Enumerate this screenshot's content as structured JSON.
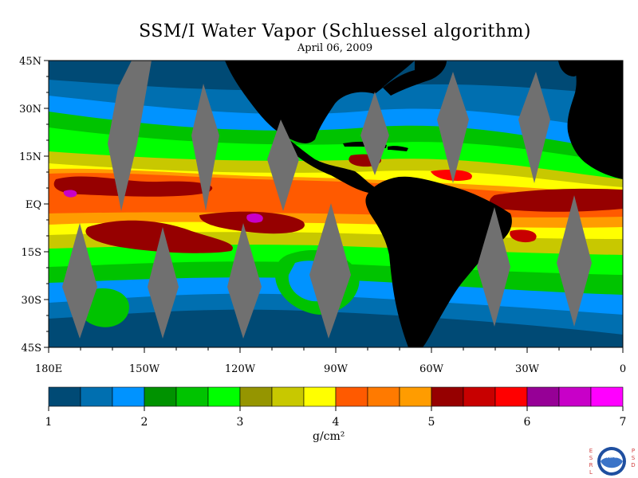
{
  "title": "SSM/I Water Vapor (Schluessel algorithm)",
  "subtitle": "April 06, 2009",
  "map": {
    "lat_labels": [
      "45N",
      "30N",
      "15N",
      "EQ",
      "15S",
      "30S",
      "45S"
    ],
    "lon_labels": [
      "180E",
      "150W",
      "120W",
      "90W",
      "60W",
      "30W",
      "0"
    ],
    "lat_range": [
      -45,
      45
    ],
    "lon_range": [
      -180,
      0
    ],
    "no_data_color": "#707070",
    "land_color": "#000000"
  },
  "colorbar": {
    "colors": [
      "#004a75",
      "#006fb0",
      "#0093ff",
      "#009200",
      "#00c300",
      "#00ff00",
      "#959500",
      "#c8c800",
      "#ffff00",
      "#ff5a00",
      "#ff7a00",
      "#ff9c00",
      "#960000",
      "#c80000",
      "#ff0000",
      "#960096",
      "#c800c8",
      "#ff00ff"
    ],
    "tick_labels": [
      "1",
      "2",
      "3",
      "4",
      "5",
      "6",
      "7"
    ],
    "range": [
      1,
      7
    ],
    "unit": "g/cm²"
  },
  "logo": {
    "left_text": [
      "E",
      "S",
      "R",
      "L"
    ],
    "right_text": [
      "P",
      "S",
      "D"
    ],
    "center_text": "NOAA",
    "colors": {
      "ring": "#1f4fa0",
      "inner": "#ffffff",
      "text": "#d04040"
    }
  }
}
